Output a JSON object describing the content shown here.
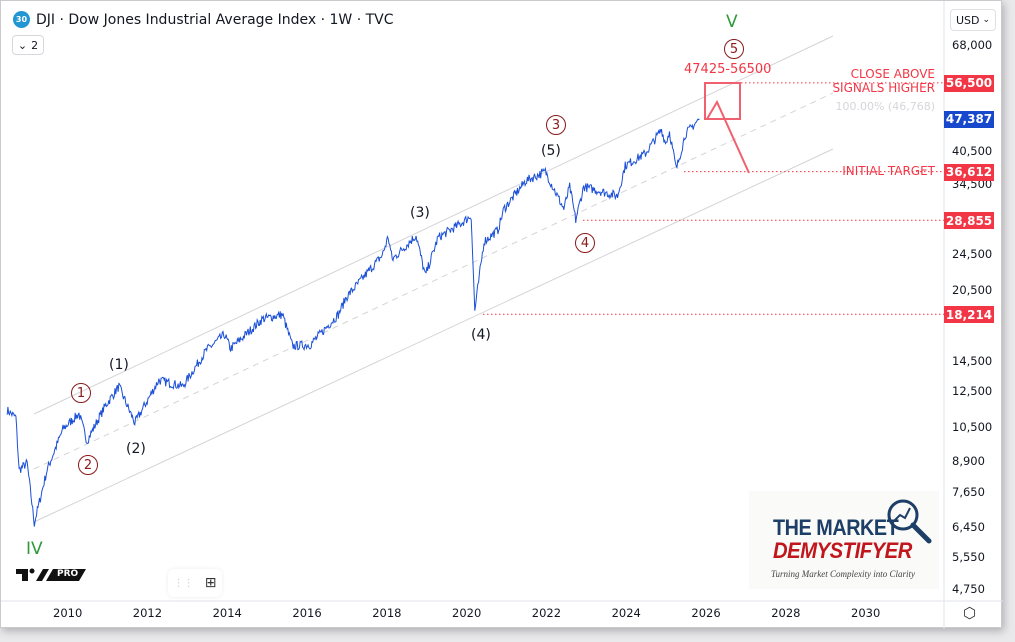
{
  "header": {
    "symbol_badge": "30",
    "title": "DJI · Dow Jones Industrial Average Index · 1W · TVC",
    "legend_toggle": "2"
  },
  "currency": "USD",
  "colors": {
    "price_line": "#1a4fd6",
    "red": "#f23645",
    "blue_badge": "#1848cc",
    "wave_maroon": "#8b1a1a",
    "wave_green": "#2e9a3a",
    "channel": "#d4d4d8"
  },
  "chart_data": {
    "type": "line",
    "title": "DJI · Dow Jones Industrial Average Index · 1W · TVC",
    "y_scale": "log",
    "ylim": [
      4400,
      72000
    ],
    "xlim": [
      2008.45,
      2031.95
    ],
    "y_ticks": [
      68000,
      40500,
      34500,
      24500,
      20500,
      14500,
      12500,
      10500,
      8900,
      7650,
      6450,
      5550,
      4750
    ],
    "x_ticks": [
      2010,
      2012,
      2014,
      2016,
      2018,
      2020,
      2022,
      2024,
      2026,
      2028,
      2030
    ],
    "grid": false,
    "series_keypoints": [
      [
        2008.5,
        11400
      ],
      [
        2008.72,
        11000
      ],
      [
        2008.8,
        8500
      ],
      [
        2009.0,
        8800
      ],
      [
        2009.18,
        6550
      ],
      [
        2009.5,
        8500
      ],
      [
        2009.9,
        10400
      ],
      [
        2010.3,
        11200
      ],
      [
        2010.5,
        9800
      ],
      [
        2010.95,
        11600
      ],
      [
        2011.3,
        12800
      ],
      [
        2011.7,
        10700
      ],
      [
        2012.3,
        13200
      ],
      [
        2012.9,
        12800
      ],
      [
        2013.5,
        15300
      ],
      [
        2013.95,
        16500
      ],
      [
        2014.1,
        15400
      ],
      [
        2014.9,
        17800
      ],
      [
        2015.4,
        18200
      ],
      [
        2015.65,
        15600
      ],
      [
        2016.1,
        15700
      ],
      [
        2016.8,
        18200
      ],
      [
        2017.0,
        19800
      ],
      [
        2017.9,
        24300
      ],
      [
        2018.05,
        26600
      ],
      [
        2018.15,
        23800
      ],
      [
        2018.75,
        26800
      ],
      [
        2018.98,
        22000
      ],
      [
        2019.3,
        26500
      ],
      [
        2019.9,
        28500
      ],
      [
        2020.13,
        29500
      ],
      [
        2020.22,
        18500
      ],
      [
        2020.45,
        26000
      ],
      [
        2020.8,
        27500
      ],
      [
        2020.95,
        30500
      ],
      [
        2021.5,
        35000
      ],
      [
        2021.99,
        36600
      ],
      [
        2022.45,
        30500
      ],
      [
        2022.6,
        34000
      ],
      [
        2022.75,
        28900
      ],
      [
        2022.95,
        34000
      ],
      [
        2023.8,
        32500
      ],
      [
        2023.99,
        37700
      ],
      [
        2024.5,
        40000
      ],
      [
        2024.9,
        45000
      ],
      [
        2025.0,
        42000
      ],
      [
        2025.1,
        44500
      ],
      [
        2025.27,
        37000
      ],
      [
        2025.5,
        44000
      ],
      [
        2025.85,
        47387
      ]
    ],
    "last_price": 47387,
    "levels": [
      {
        "price": 56500,
        "label": "CLOSE ABOVE\nSIGNALS HIGHER",
        "badge": "56,500"
      },
      {
        "price": 36612,
        "label": "INITIAL TARGET",
        "badge": "36,612"
      },
      {
        "price": 28855,
        "label": "",
        "badge": "28,855"
      },
      {
        "price": 18214,
        "label": "",
        "badge": "18,214"
      }
    ],
    "last_badge": "47,387",
    "fib_label": "100.00% (46,768)",
    "target_zone": "47425-56500",
    "wave_labels": {
      "primary": [
        "1",
        "2",
        "3",
        "4",
        "5"
      ],
      "intermediate": [
        "(1)",
        "(2)",
        "(3)",
        "(4)",
        "(5)"
      ],
      "cycle": [
        "IV",
        "V"
      ]
    }
  },
  "annotations": {
    "close_above_1": "CLOSE ABOVE",
    "close_above_2": "SIGNALS HIGHER",
    "initial_target": "INITIAL TARGET"
  },
  "logo": {
    "line1": "THE MARKET",
    "line2": "DEMYSTIFYER",
    "tagline": "Turning Market Complexity into Clarity",
    "tv": "PRO"
  }
}
